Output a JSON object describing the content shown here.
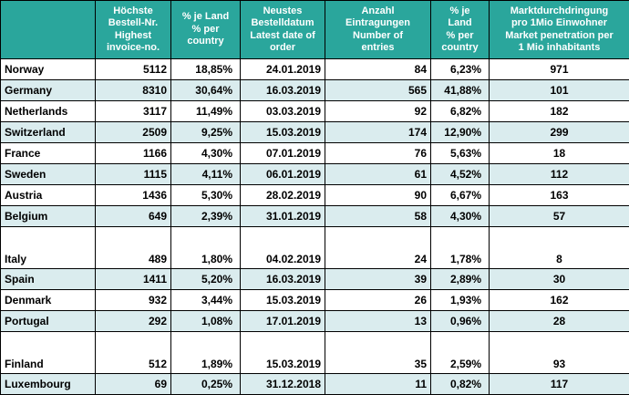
{
  "colors": {
    "header_bg": "#2AA69C",
    "header_text": "#FFFFFF",
    "row_bg": "#FFFFFF",
    "row_shade_bg": "#DAECEE",
    "border": "#000000",
    "body_text": "#000000"
  },
  "table": {
    "headers": {
      "country": "",
      "highest_invoice": "Höchste\nBestell-Nr.\nHighest\ninvoice-no.",
      "pct_invoice": "% je Land\n% per\ncountry",
      "latest_date": "Neustes\nBestelldatum\nLatest date of\norder",
      "entries": "Anzahl\nEintragungen\nNumber of\nentries",
      "pct_entries": "% je\nLand\n% per\ncountry",
      "penetration": "Marktdurchdringung\npro 1Mio Einwohner\nMarket penetration per\n1 Mio inhabitants"
    },
    "rows": [
      {
        "country": "Norway",
        "highest_invoice": "5112",
        "pct_invoice": "18,85%",
        "latest_date": "24.01.2019",
        "entries": "84",
        "pct_entries": "6,23%",
        "penetration": "971",
        "tall": false,
        "shade": false
      },
      {
        "country": "Germany",
        "highest_invoice": "8310",
        "pct_invoice": "30,64%",
        "latest_date": "16.03.2019",
        "entries": "565",
        "pct_entries": "41,88%",
        "penetration": "101",
        "tall": false,
        "shade": true
      },
      {
        "country": "Netherlands",
        "highest_invoice": "3117",
        "pct_invoice": "11,49%",
        "latest_date": "03.03.2019",
        "entries": "92",
        "pct_entries": "6,82%",
        "penetration": "182",
        "tall": false,
        "shade": false
      },
      {
        "country": "Switzerland",
        "highest_invoice": "2509",
        "pct_invoice": "9,25%",
        "latest_date": "15.03.2019",
        "entries": "174",
        "pct_entries": "12,90%",
        "penetration": "299",
        "tall": false,
        "shade": true
      },
      {
        "country": "France",
        "highest_invoice": "1166",
        "pct_invoice": "4,30%",
        "latest_date": "07.01.2019",
        "entries": "76",
        "pct_entries": "5,63%",
        "penetration": "18",
        "tall": false,
        "shade": false
      },
      {
        "country": "Sweden",
        "highest_invoice": "1115",
        "pct_invoice": "4,11%",
        "latest_date": "06.01.2019",
        "entries": "61",
        "pct_entries": "4,52%",
        "penetration": "112",
        "tall": false,
        "shade": true
      },
      {
        "country": "Austria",
        "highest_invoice": "1436",
        "pct_invoice": "5,30%",
        "latest_date": "28.02.2019",
        "entries": "90",
        "pct_entries": "6,67%",
        "penetration": "163",
        "tall": false,
        "shade": false
      },
      {
        "country": "Belgium",
        "highest_invoice": "649",
        "pct_invoice": "2,39%",
        "latest_date": "31.01.2019",
        "entries": "58",
        "pct_entries": "4,30%",
        "penetration": "57",
        "tall": false,
        "shade": true
      },
      {
        "country": "Italy",
        "highest_invoice": "489",
        "pct_invoice": "1,80%",
        "latest_date": "04.02.2019",
        "entries": "24",
        "pct_entries": "1,78%",
        "penetration": "8",
        "tall": true,
        "shade": false
      },
      {
        "country": "Spain",
        "highest_invoice": "1411",
        "pct_invoice": "5,20%",
        "latest_date": "16.03.2019",
        "entries": "39",
        "pct_entries": "2,89%",
        "penetration": "30",
        "tall": false,
        "shade": true
      },
      {
        "country": "Denmark",
        "highest_invoice": "932",
        "pct_invoice": "3,44%",
        "latest_date": "15.03.2019",
        "entries": "26",
        "pct_entries": "1,93%",
        "penetration": "162",
        "tall": false,
        "shade": false
      },
      {
        "country": "Portugal",
        "highest_invoice": "292",
        "pct_invoice": "1,08%",
        "latest_date": "17.01.2019",
        "entries": "13",
        "pct_entries": "0,96%",
        "penetration": "28",
        "tall": false,
        "shade": true
      },
      {
        "country": "Finland",
        "highest_invoice": "512",
        "pct_invoice": "1,89%",
        "latest_date": "15.03.2019",
        "entries": "35",
        "pct_entries": "2,59%",
        "penetration": "93",
        "tall": true,
        "shade": false
      },
      {
        "country": "Luxembourg",
        "highest_invoice": "69",
        "pct_invoice": "0,25%",
        "latest_date": "31.12.2018",
        "entries": "11",
        "pct_entries": "0,82%",
        "penetration": "117",
        "tall": false,
        "shade": true
      }
    ]
  }
}
